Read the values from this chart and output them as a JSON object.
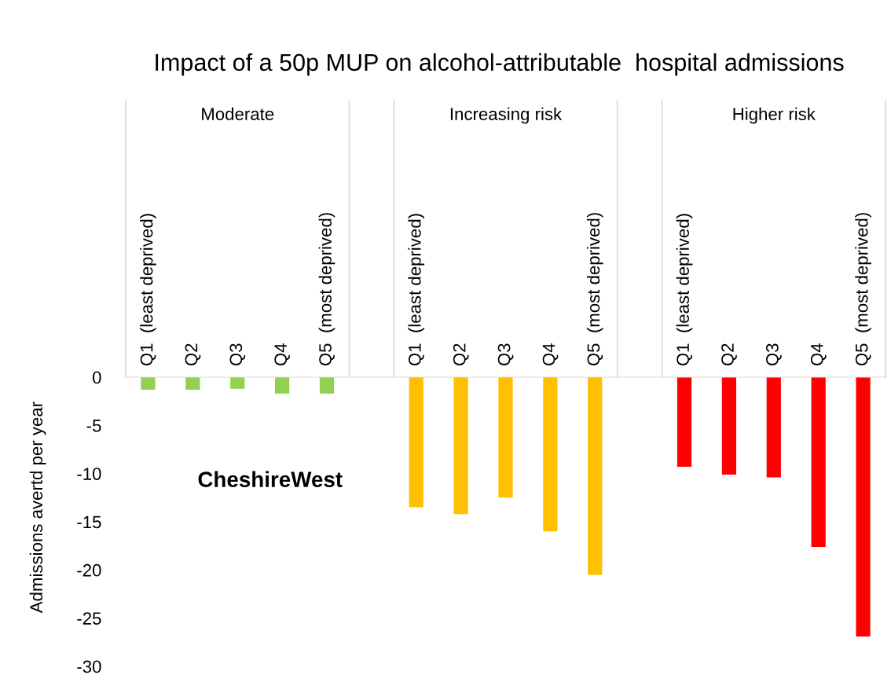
{
  "chart_data": {
    "type": "bar",
    "title": "Impact of a 50p MUP on alcohol-attributable  hospital admissions",
    "ylabel": "Admissions avertd per year",
    "categories": [
      "Q1  (least deprived)",
      "Q2",
      "Q3",
      "Q4",
      "Q5  (most deprived)",
      null,
      "Q1  (least deprived)",
      "Q2",
      "Q3",
      "Q4",
      "Q5  (most deprived)",
      null,
      "Q1  (least deprived)",
      "Q2",
      "Q3",
      "Q4",
      "Q5  (most deprived)"
    ],
    "series": [
      {
        "color": "#92d050",
        "values": [
          -1.3,
          -1.3,
          -1.2,
          -1.7,
          -1.7,
          null,
          null,
          null,
          null,
          null,
          null,
          null,
          null,
          null,
          null,
          null,
          null
        ]
      },
      {
        "color": "#ffc000",
        "values": [
          null,
          null,
          null,
          null,
          null,
          null,
          -13.5,
          -14.2,
          -12.5,
          -16.0,
          -20.5,
          null,
          null,
          null,
          null,
          null,
          null
        ]
      },
      {
        "color": "#ff0000",
        "values": [
          null,
          null,
          null,
          null,
          null,
          null,
          null,
          null,
          null,
          null,
          null,
          null,
          -9.3,
          -10.1,
          -10.4,
          -17.6,
          -26.9
        ]
      }
    ],
    "ylim": [
      -30,
      0
    ],
    "yticks": [
      0,
      -5,
      -10,
      -15,
      -20,
      -25,
      -30
    ],
    "annotations": [
      "Moderate",
      "Increasing risk",
      "Higher risk",
      "CheshireWest"
    ],
    "grid": false,
    "legend": false
  }
}
